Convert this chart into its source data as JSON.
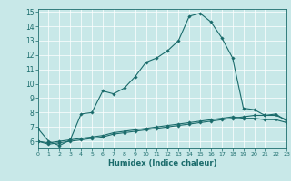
{
  "title": "",
  "xlabel": "Humidex (Indice chaleur)",
  "xlim": [
    0,
    23
  ],
  "ylim": [
    5.5,
    15.2
  ],
  "yticks": [
    6,
    7,
    8,
    9,
    10,
    11,
    12,
    13,
    14,
    15
  ],
  "xticks": [
    0,
    1,
    2,
    3,
    4,
    5,
    6,
    7,
    8,
    9,
    10,
    11,
    12,
    13,
    14,
    15,
    16,
    17,
    18,
    19,
    20,
    21,
    22,
    23
  ],
  "bg_color": "#c8e8e8",
  "line_color": "#1a6b6b",
  "grid_color": "#ffffff",
  "line1_x": [
    0,
    1,
    2,
    3,
    4,
    5,
    6,
    7,
    8,
    9,
    10,
    11,
    12,
    13,
    14,
    15,
    16,
    17,
    18,
    19,
    20,
    21,
    22,
    23
  ],
  "line1_y": [
    6.9,
    6.0,
    5.7,
    6.1,
    7.9,
    8.0,
    9.5,
    9.3,
    9.7,
    10.5,
    11.5,
    11.8,
    12.3,
    13.0,
    14.7,
    14.9,
    14.3,
    13.2,
    11.8,
    8.3,
    8.2,
    7.8,
    7.8,
    7.5
  ],
  "line2_x": [
    0,
    1,
    2,
    3,
    4,
    5,
    6,
    7,
    8,
    9,
    10,
    11,
    12,
    13,
    14,
    15,
    16,
    17,
    18,
    19,
    20,
    21,
    22,
    23
  ],
  "line2_y": [
    6.0,
    5.8,
    5.9,
    6.0,
    6.1,
    6.2,
    6.3,
    6.5,
    6.6,
    6.7,
    6.8,
    6.9,
    7.0,
    7.1,
    7.2,
    7.3,
    7.4,
    7.5,
    7.6,
    7.7,
    7.8,
    7.8,
    7.9,
    7.4
  ],
  "line3_x": [
    0,
    1,
    2,
    3,
    4,
    5,
    6,
    7,
    8,
    9,
    10,
    11,
    12,
    13,
    14,
    15,
    16,
    17,
    18,
    19,
    20,
    21,
    22,
    23
  ],
  "line3_y": [
    6.0,
    5.9,
    6.0,
    6.1,
    6.2,
    6.3,
    6.4,
    6.6,
    6.7,
    6.8,
    6.9,
    7.0,
    7.1,
    7.2,
    7.3,
    7.4,
    7.5,
    7.6,
    7.7,
    7.6,
    7.6,
    7.5,
    7.5,
    7.3
  ],
  "xlabel_fontsize": 6.0,
  "tick_fontsize_x": 4.5,
  "tick_fontsize_y": 5.5,
  "marker_size": 1.8,
  "linewidth": 0.8
}
